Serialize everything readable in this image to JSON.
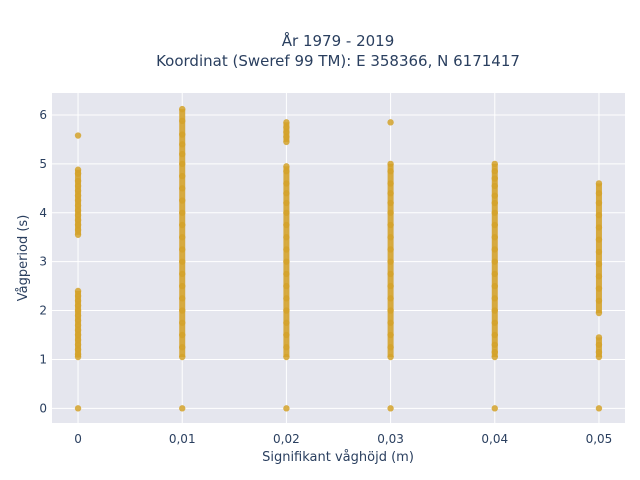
{
  "chart_data": {
    "type": "scatter",
    "title_line1": "År 1979 - 2019",
    "title_line2": "Koordinat (Sweref 99 TM): E 358366, N 6171417",
    "xlabel": "Signifikant våghöjd (m)",
    "ylabel": "Vågperiod (s)",
    "xlim": [
      -0.0025,
      0.0525
    ],
    "ylim": [
      -0.3,
      6.45
    ],
    "x_ticks": [
      0,
      0.01,
      0.02,
      0.03,
      0.04,
      0.05
    ],
    "x_tick_labels": [
      "0",
      "0,01",
      "0,02",
      "0,03",
      "0,04",
      "0,05"
    ],
    "y_ticks": [
      0,
      1,
      2,
      3,
      4,
      5,
      6
    ],
    "y_tick_labels": [
      "0",
      "1",
      "2",
      "3",
      "4",
      "5",
      "6"
    ],
    "grid": true,
    "colors": {
      "point": "#d4a22a",
      "plot_bg": "#e5e6ee",
      "grid": "#ffffff",
      "text": "#2a3f5f"
    },
    "series": [
      {
        "points": [
          {
            "x": 0,
            "y": 0
          },
          {
            "x": 0,
            "y": 1.05
          },
          {
            "x": 0,
            "y": 1.1
          },
          {
            "x": 0,
            "y": 1.2
          },
          {
            "x": 0,
            "y": 1.3
          },
          {
            "x": 0,
            "y": 1.4
          },
          {
            "x": 0,
            "y": 1.5
          },
          {
            "x": 0,
            "y": 1.6
          },
          {
            "x": 0,
            "y": 1.7
          },
          {
            "x": 0,
            "y": 1.8
          },
          {
            "x": 0,
            "y": 1.9
          },
          {
            "x": 0,
            "y": 2.0
          },
          {
            "x": 0,
            "y": 2.1
          },
          {
            "x": 0,
            "y": 2.2
          },
          {
            "x": 0,
            "y": 2.3
          },
          {
            "x": 0,
            "y": 2.4
          },
          {
            "x": 0,
            "y": 3.55
          },
          {
            "x": 0,
            "y": 3.65
          },
          {
            "x": 0,
            "y": 3.75
          },
          {
            "x": 0,
            "y": 3.85
          },
          {
            "x": 0,
            "y": 3.95
          },
          {
            "x": 0,
            "y": 4.05
          },
          {
            "x": 0,
            "y": 4.15
          },
          {
            "x": 0,
            "y": 4.25
          },
          {
            "x": 0,
            "y": 4.35
          },
          {
            "x": 0,
            "y": 4.45
          },
          {
            "x": 0,
            "y": 4.55
          },
          {
            "x": 0,
            "y": 4.65
          },
          {
            "x": 0,
            "y": 4.8
          },
          {
            "x": 0,
            "y": 4.88
          },
          {
            "x": 0,
            "y": 5.58
          },
          {
            "x": 0.01,
            "y": 0
          },
          {
            "x": 0.01,
            "y": 1.05
          },
          {
            "x": 0.01,
            "y": 1.25
          },
          {
            "x": 0.01,
            "y": 1.5
          },
          {
            "x": 0.01,
            "y": 1.75
          },
          {
            "x": 0.01,
            "y": 2.0
          },
          {
            "x": 0.01,
            "y": 2.25
          },
          {
            "x": 0.01,
            "y": 2.5
          },
          {
            "x": 0.01,
            "y": 2.75
          },
          {
            "x": 0.01,
            "y": 3.0
          },
          {
            "x": 0.01,
            "y": 3.25
          },
          {
            "x": 0.01,
            "y": 3.5
          },
          {
            "x": 0.01,
            "y": 3.75
          },
          {
            "x": 0.01,
            "y": 4.0
          },
          {
            "x": 0.01,
            "y": 4.25
          },
          {
            "x": 0.01,
            "y": 4.5
          },
          {
            "x": 0.01,
            "y": 4.75
          },
          {
            "x": 0.01,
            "y": 5.0
          },
          {
            "x": 0.01,
            "y": 5.2
          },
          {
            "x": 0.01,
            "y": 5.4
          },
          {
            "x": 0.01,
            "y": 5.6
          },
          {
            "x": 0.01,
            "y": 5.88
          },
          {
            "x": 0.01,
            "y": 6.12
          },
          {
            "x": 0.02,
            "y": 0
          },
          {
            "x": 0.02,
            "y": 1.05
          },
          {
            "x": 0.02,
            "y": 1.25
          },
          {
            "x": 0.02,
            "y": 1.5
          },
          {
            "x": 0.02,
            "y": 1.75
          },
          {
            "x": 0.02,
            "y": 2.0
          },
          {
            "x": 0.02,
            "y": 2.25
          },
          {
            "x": 0.02,
            "y": 2.5
          },
          {
            "x": 0.02,
            "y": 2.75
          },
          {
            "x": 0.02,
            "y": 3.0
          },
          {
            "x": 0.02,
            "y": 3.25
          },
          {
            "x": 0.02,
            "y": 3.5
          },
          {
            "x": 0.02,
            "y": 3.75
          },
          {
            "x": 0.02,
            "y": 4.0
          },
          {
            "x": 0.02,
            "y": 4.2
          },
          {
            "x": 0.02,
            "y": 4.4
          },
          {
            "x": 0.02,
            "y": 4.6
          },
          {
            "x": 0.02,
            "y": 4.85
          },
          {
            "x": 0.02,
            "y": 4.95
          },
          {
            "x": 0.02,
            "y": 5.45
          },
          {
            "x": 0.02,
            "y": 5.55
          },
          {
            "x": 0.02,
            "y": 5.65
          },
          {
            "x": 0.02,
            "y": 5.75
          },
          {
            "x": 0.02,
            "y": 5.85
          },
          {
            "x": 0.03,
            "y": 0
          },
          {
            "x": 0.03,
            "y": 1.05
          },
          {
            "x": 0.03,
            "y": 1.25
          },
          {
            "x": 0.03,
            "y": 1.5
          },
          {
            "x": 0.03,
            "y": 1.75
          },
          {
            "x": 0.03,
            "y": 2.0
          },
          {
            "x": 0.03,
            "y": 2.25
          },
          {
            "x": 0.03,
            "y": 2.5
          },
          {
            "x": 0.03,
            "y": 2.75
          },
          {
            "x": 0.03,
            "y": 3.0
          },
          {
            "x": 0.03,
            "y": 3.25
          },
          {
            "x": 0.03,
            "y": 3.5
          },
          {
            "x": 0.03,
            "y": 3.75
          },
          {
            "x": 0.03,
            "y": 4.0
          },
          {
            "x": 0.03,
            "y": 4.2
          },
          {
            "x": 0.03,
            "y": 4.4
          },
          {
            "x": 0.03,
            "y": 4.6
          },
          {
            "x": 0.03,
            "y": 4.85
          },
          {
            "x": 0.03,
            "y": 5.0
          },
          {
            "x": 0.03,
            "y": 5.85
          },
          {
            "x": 0.04,
            "y": 0
          },
          {
            "x": 0.04,
            "y": 1.05
          },
          {
            "x": 0.04,
            "y": 1.15
          },
          {
            "x": 0.04,
            "y": 1.3
          },
          {
            "x": 0.04,
            "y": 1.5
          },
          {
            "x": 0.04,
            "y": 1.75
          },
          {
            "x": 0.04,
            "y": 2.0
          },
          {
            "x": 0.04,
            "y": 2.25
          },
          {
            "x": 0.04,
            "y": 2.5
          },
          {
            "x": 0.04,
            "y": 2.75
          },
          {
            "x": 0.04,
            "y": 3.0
          },
          {
            "x": 0.04,
            "y": 3.25
          },
          {
            "x": 0.04,
            "y": 3.5
          },
          {
            "x": 0.04,
            "y": 3.75
          },
          {
            "x": 0.04,
            "y": 4.0
          },
          {
            "x": 0.04,
            "y": 4.2
          },
          {
            "x": 0.04,
            "y": 4.35
          },
          {
            "x": 0.04,
            "y": 4.55
          },
          {
            "x": 0.04,
            "y": 4.7
          },
          {
            "x": 0.04,
            "y": 4.85
          },
          {
            "x": 0.04,
            "y": 5.0
          },
          {
            "x": 0.05,
            "y": 0
          },
          {
            "x": 0.05,
            "y": 1.05
          },
          {
            "x": 0.05,
            "y": 1.15
          },
          {
            "x": 0.05,
            "y": 1.3
          },
          {
            "x": 0.05,
            "y": 1.45
          },
          {
            "x": 0.05,
            "y": 1.95
          },
          {
            "x": 0.05,
            "y": 2.2
          },
          {
            "x": 0.05,
            "y": 2.45
          },
          {
            "x": 0.05,
            "y": 2.7
          },
          {
            "x": 0.05,
            "y": 2.95
          },
          {
            "x": 0.05,
            "y": 3.2
          },
          {
            "x": 0.05,
            "y": 3.45
          },
          {
            "x": 0.05,
            "y": 3.7
          },
          {
            "x": 0.05,
            "y": 3.95
          },
          {
            "x": 0.05,
            "y": 4.2
          },
          {
            "x": 0.05,
            "y": 4.4
          },
          {
            "x": 0.05,
            "y": 4.6
          }
        ]
      }
    ]
  }
}
